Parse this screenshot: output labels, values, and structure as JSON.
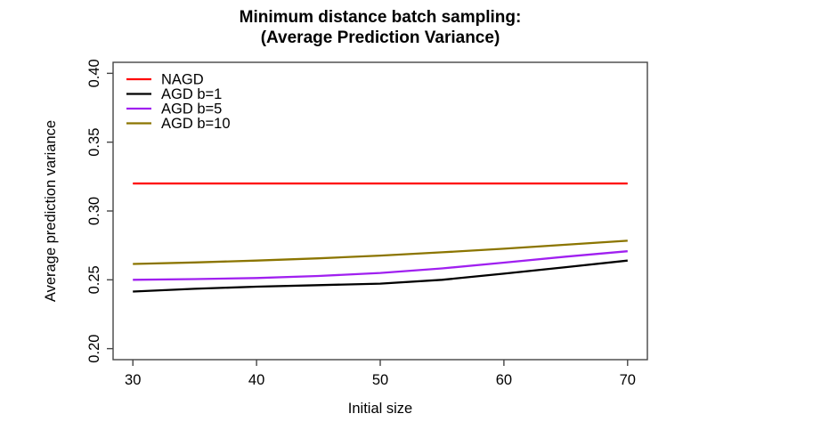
{
  "chart_data": {
    "type": "line",
    "title": "Minimum distance batch sampling:",
    "subtitle": "(Average Prediction Variance)",
    "xlabel": "Initial size",
    "ylabel": "Average prediction variance",
    "x": [
      30,
      35,
      40,
      45,
      50,
      55,
      60,
      65,
      70
    ],
    "series": [
      {
        "name": "NAGD",
        "color": "#ff0000",
        "values": [
          0.32,
          0.32,
          0.32,
          0.32,
          0.32,
          0.32,
          0.32,
          0.32,
          0.32
        ]
      },
      {
        "name": "AGD b=1",
        "color": "#000000",
        "values": [
          0.2415,
          0.2435,
          0.245,
          0.2461,
          0.2472,
          0.25,
          0.2545,
          0.2592,
          0.264
        ]
      },
      {
        "name": "AGD b=5",
        "color": "#a020f0",
        "values": [
          0.25,
          0.2505,
          0.2513,
          0.2528,
          0.255,
          0.2583,
          0.2625,
          0.2668,
          0.2708
        ]
      },
      {
        "name": "AGD b=10",
        "color": "#8b7500",
        "values": [
          0.2615,
          0.2626,
          0.264,
          0.2656,
          0.2676,
          0.27,
          0.2726,
          0.2755,
          0.2784
        ]
      }
    ],
    "xlim": [
      28.4,
      71.6
    ],
    "ylim": [
      0.192,
      0.408
    ],
    "xticks": [
      "30",
      "40",
      "50",
      "60",
      "70"
    ],
    "yticks": [
      "0.20",
      "0.25",
      "0.30",
      "0.35",
      "0.40"
    ],
    "grid": false,
    "legend_position": "top-left",
    "frame_color": "#454545",
    "text_color": "#000000"
  }
}
